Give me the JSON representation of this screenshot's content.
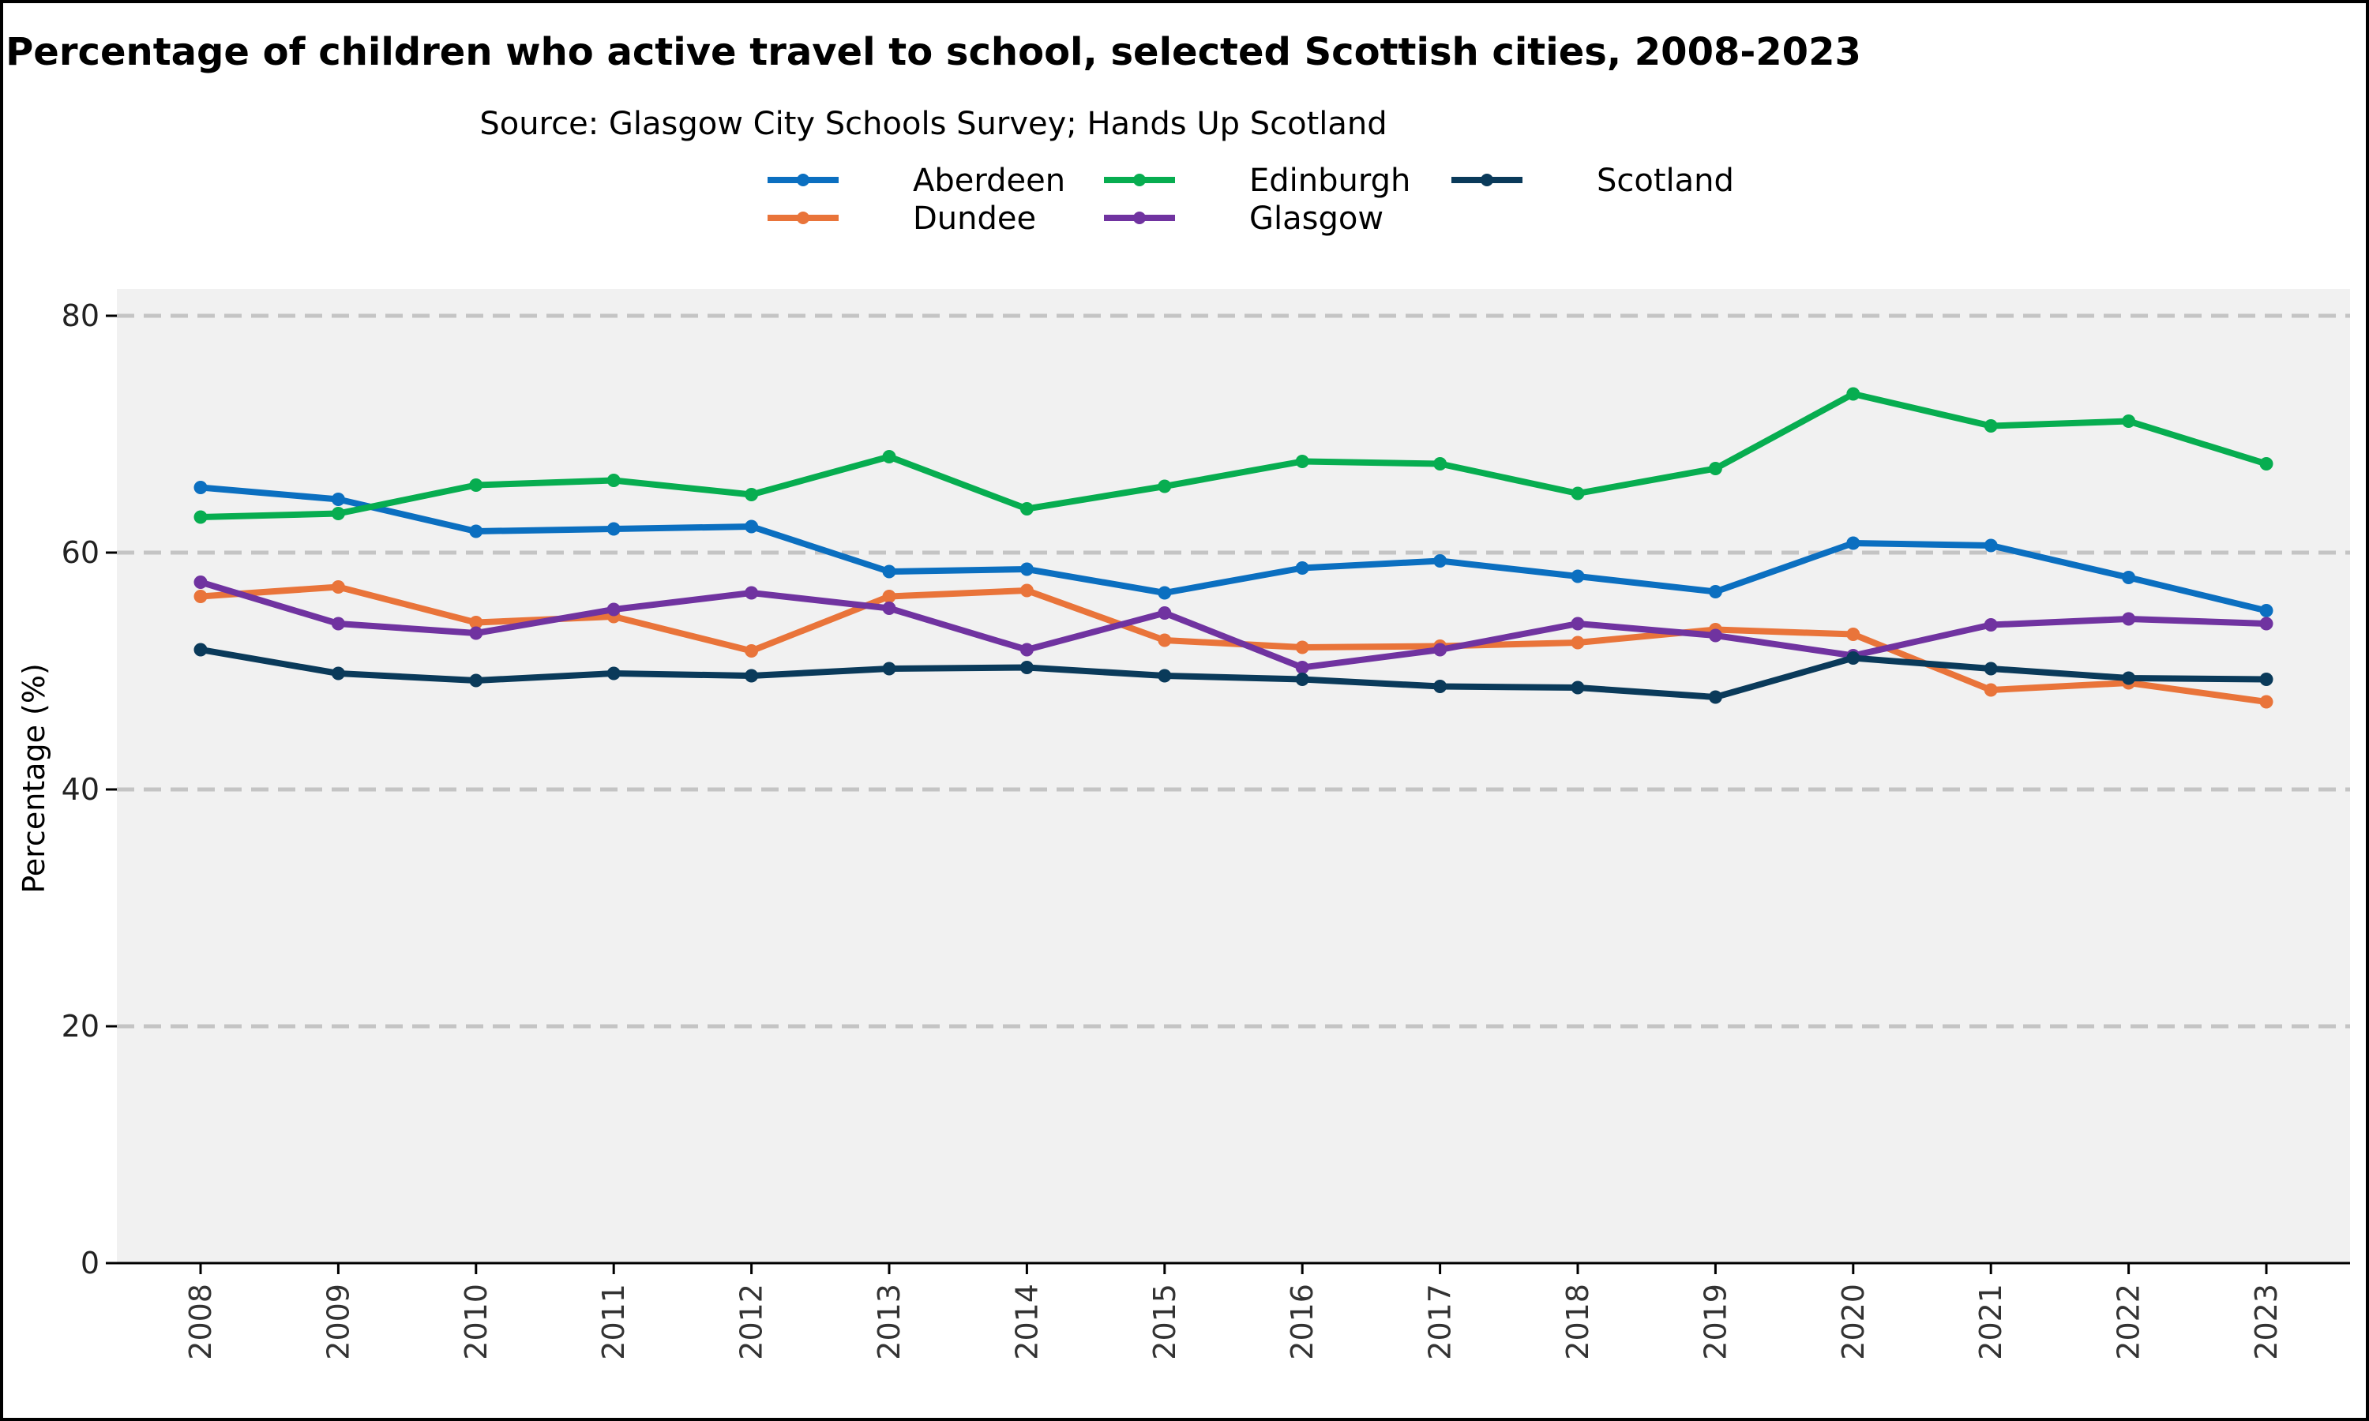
{
  "chart_data": {
    "type": "line",
    "title": "Percentage of children who active travel to school, selected Scottish cities, 2008-2023",
    "subtitle": "Source: Glasgow City Schools Survey; Hands Up Scotland",
    "xlabel": "",
    "ylabel": "Percentage (%)",
    "ylim": [
      0,
      82
    ],
    "yticks": [
      0,
      20,
      40,
      60,
      80
    ],
    "ytick_labels": [
      "0",
      "20",
      "40",
      "60",
      "80"
    ],
    "grid": "horizontal dashed",
    "legend_position": "top",
    "x": [
      "2008",
      "2009",
      "2010",
      "2011",
      "2012",
      "2013",
      "2014",
      "2015",
      "2016",
      "2017",
      "2018",
      "2019",
      "2020",
      "2021",
      "2022",
      "2023"
    ],
    "series": [
      {
        "name": "Aberdeen",
        "color": "#0b6fc0",
        "values": [
          65.5,
          64.5,
          61.8,
          62.0,
          62.2,
          58.4,
          58.6,
          56.6,
          58.7,
          59.3,
          58.0,
          56.7,
          60.8,
          60.6,
          57.9,
          55.1
        ]
      },
      {
        "name": "Dundee",
        "color": "#e9743a",
        "values": [
          56.3,
          57.1,
          54.1,
          54.6,
          51.7,
          56.3,
          56.8,
          52.6,
          52.0,
          52.1,
          52.4,
          53.5,
          53.1,
          48.4,
          49.0,
          47.4
        ]
      },
      {
        "name": "Edinburgh",
        "color": "#07ad50",
        "values": [
          63.0,
          63.3,
          65.7,
          66.1,
          64.9,
          68.1,
          63.7,
          65.6,
          67.7,
          67.5,
          65.0,
          67.1,
          73.4,
          70.7,
          71.1,
          67.5
        ]
      },
      {
        "name": "Glasgow",
        "color": "#7033a0",
        "values": [
          57.5,
          54.0,
          53.2,
          55.2,
          56.6,
          55.3,
          51.8,
          54.9,
          50.3,
          51.8,
          54.0,
          53.0,
          51.3,
          53.9,
          54.4,
          54.0
        ]
      },
      {
        "name": "Scotland",
        "color": "#0a3a5a",
        "values": [
          51.8,
          49.8,
          49.2,
          49.8,
          49.6,
          50.2,
          50.3,
          49.6,
          49.3,
          48.7,
          48.6,
          47.8,
          51.1,
          50.2,
          49.4,
          49.3
        ]
      }
    ]
  }
}
